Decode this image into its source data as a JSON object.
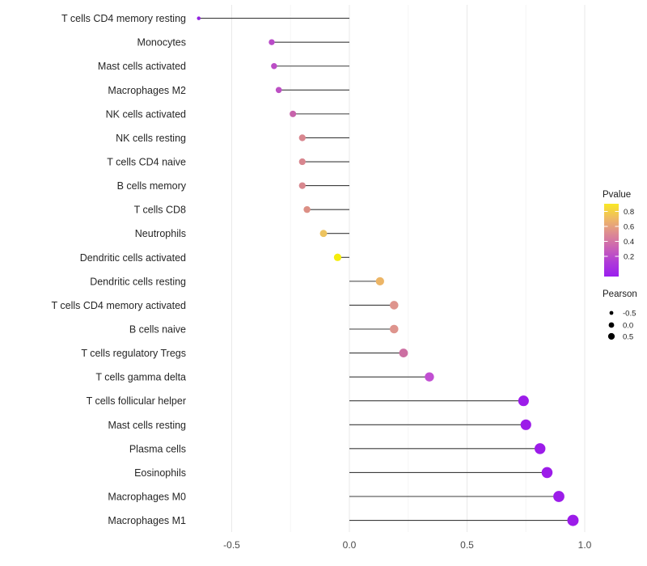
{
  "chart_data": {
    "type": "lollipop",
    "title": "",
    "xlabel": "",
    "ylabel": "",
    "xlim": [
      -0.72,
      1.06
    ],
    "grid": true,
    "x_major_ticks": [
      -0.5,
      0.0,
      0.5,
      1.0
    ],
    "x_minor_ticks": [
      -0.25,
      0.25,
      0.75
    ],
    "x_tick_labels": [
      "-0.5",
      "0.0",
      "0.5",
      "1.0"
    ],
    "color_encoding": "Pvalue",
    "size_encoding": "Pearson",
    "rows": [
      {
        "label": "T cells CD4 memory resting",
        "pearson": -0.64,
        "pvalue": 0.02,
        "color": "#9223E0"
      },
      {
        "label": "Monocytes",
        "pearson": -0.33,
        "pvalue": 0.13,
        "color": "#B94BC8"
      },
      {
        "label": "Mast cells activated",
        "pearson": -0.32,
        "pvalue": 0.13,
        "color": "#BB4EC6"
      },
      {
        "label": "Macrophages M2",
        "pearson": -0.3,
        "pvalue": 0.14,
        "color": "#BD50C4"
      },
      {
        "label": "NK cells activated",
        "pearson": -0.24,
        "pvalue": 0.25,
        "color": "#C763AB"
      },
      {
        "label": "NK cells resting",
        "pearson": -0.2,
        "pvalue": 0.38,
        "color": "#D8868F"
      },
      {
        "label": "T cells CD4 naive",
        "pearson": -0.2,
        "pvalue": 0.38,
        "color": "#D8868F"
      },
      {
        "label": "B cells memory",
        "pearson": -0.2,
        "pvalue": 0.38,
        "color": "#D8878E"
      },
      {
        "label": "T cells CD8",
        "pearson": -0.18,
        "pvalue": 0.41,
        "color": "#DC8F85"
      },
      {
        "label": "Neutrophils",
        "pearson": -0.11,
        "pvalue": 0.66,
        "color": "#EDC35F"
      },
      {
        "label": "Dendritic cells activated",
        "pearson": -0.05,
        "pvalue": 0.83,
        "color": "#F5ED0C"
      },
      {
        "label": "Dendritic cells resting",
        "pearson": 0.13,
        "pvalue": 0.62,
        "color": "#ECB566"
      },
      {
        "label": "T cells CD4 memory activated",
        "pearson": 0.19,
        "pvalue": 0.42,
        "color": "#DE948D"
      },
      {
        "label": "B cells naive",
        "pearson": 0.19,
        "pvalue": 0.42,
        "color": "#DE948D"
      },
      {
        "label": "T cells regulatory  Tregs",
        "pearson": 0.23,
        "pvalue": 0.3,
        "color": "#CC6FA2"
      },
      {
        "label": "T cells gamma delta",
        "pearson": 0.34,
        "pvalue": 0.15,
        "color": "#C14FD2"
      },
      {
        "label": "T cells follicular helper",
        "pearson": 0.74,
        "pvalue": 0.01,
        "color": "#9C1CE9"
      },
      {
        "label": "Mast cells resting",
        "pearson": 0.75,
        "pvalue": 0.01,
        "color": "#9C1CE9"
      },
      {
        "label": "Plasma cells",
        "pearson": 0.81,
        "pvalue": 0.006,
        "color": "#9C1CE9"
      },
      {
        "label": "Eosinophils",
        "pearson": 0.84,
        "pvalue": 0.005,
        "color": "#9C1CE9"
      },
      {
        "label": "Macrophages M0",
        "pearson": 0.89,
        "pvalue": 0.003,
        "color": "#9C1CE9"
      },
      {
        "label": "Macrophages M1",
        "pearson": 0.95,
        "pvalue": 0.001,
        "color": "#9C1CE9"
      }
    ]
  },
  "legend": {
    "pvalue": {
      "title": "Pvalue",
      "tick_labels": [
        "0.8",
        "0.6",
        "0.4",
        "0.2"
      ],
      "gradient_stops": [
        "#F9E824",
        "#EFBA64",
        "#DE8D90",
        "#CB63B4",
        "#AF3BD8",
        "#9B1FEE"
      ]
    },
    "pearson": {
      "title": "Pearson",
      "labels": [
        "-0.5",
        "0.0",
        "0.5"
      ],
      "dot_color": "#000000"
    }
  },
  "colors": {
    "stem": "#3C3C3C",
    "grid_major": "#E9E9E9",
    "grid_minor": "#F5F5F5",
    "axis_text": "#4A4A4A",
    "label_text": "#262626",
    "legend_text": "#1A1A1A",
    "background": "#FFFFFF"
  }
}
